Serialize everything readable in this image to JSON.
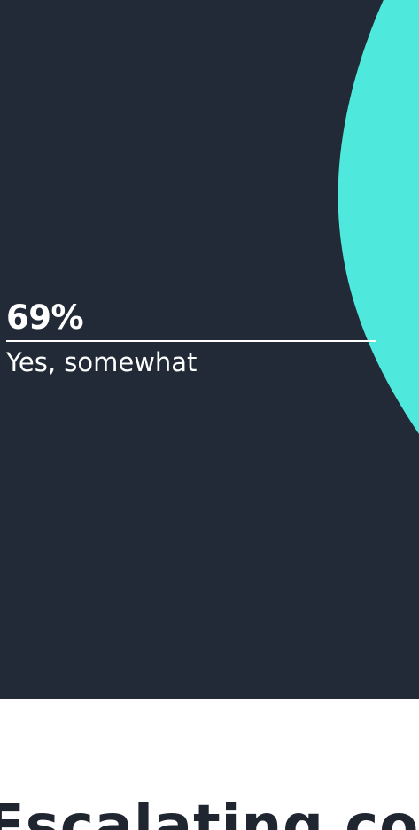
{
  "chart": {
    "callout_value": "69%",
    "callout_label": "Yes, somewhat",
    "accent_color": "#4ee8dc",
    "background_color": "#212a36"
  },
  "chart_data": {
    "type": "pie",
    "slices": [
      {
        "label": "Yes, somewhat",
        "value": 69
      }
    ]
  },
  "section": {
    "heading_partial": "Escalating comp"
  }
}
